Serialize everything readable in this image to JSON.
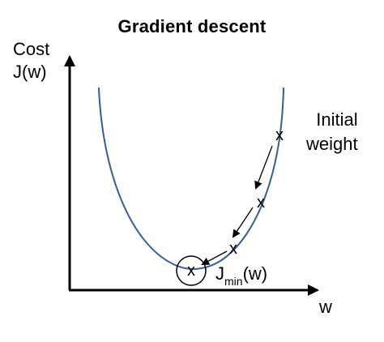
{
  "title": "Gradient descent",
  "axes": {
    "y_label_line1": "Cost",
    "y_label_line2": "J(w)",
    "x_label": "w"
  },
  "annotations": {
    "initial_line1": "Initial",
    "initial_line2": "weight",
    "min_label_prefix": "J",
    "min_label_sub": "min",
    "min_label_suffix": "(w)",
    "step_marker": "x"
  },
  "colors": {
    "curve": "#3a5a9b",
    "axes": "#000000",
    "text": "#000000"
  }
}
